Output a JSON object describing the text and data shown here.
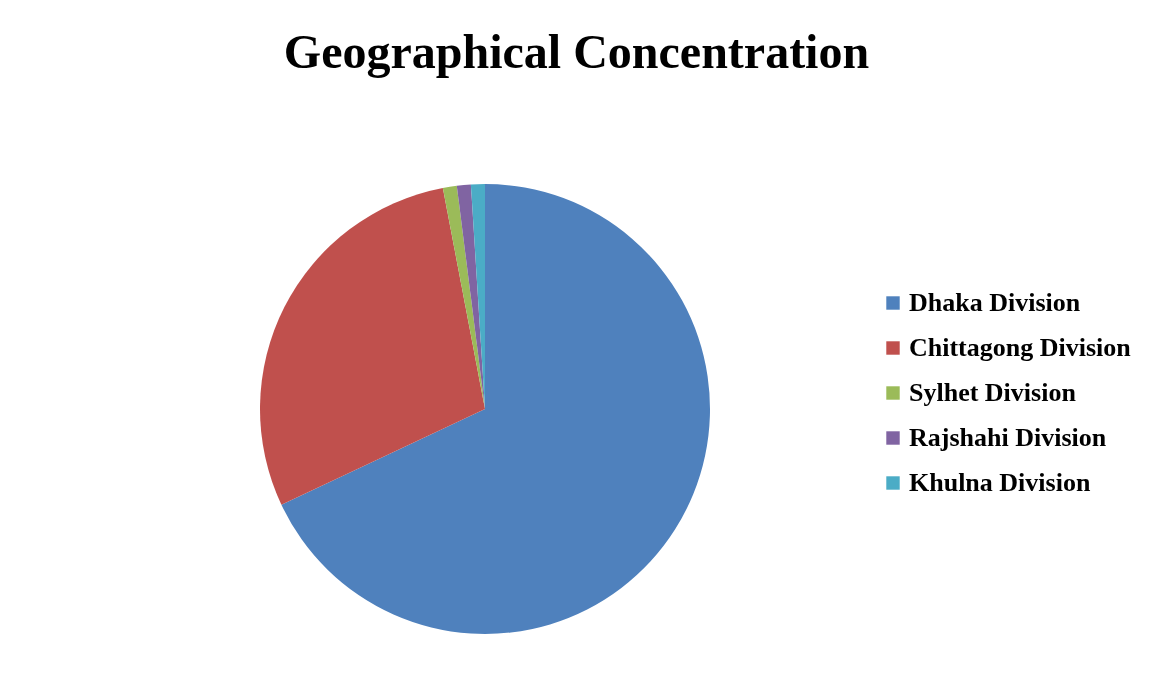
{
  "chart_data": {
    "type": "pie",
    "title": "Geographical Concentration",
    "categories": [
      "Dhaka Division",
      "Chittagong Division",
      "Sylhet Division",
      "Rajshahi Division",
      "Khulna Division"
    ],
    "values": [
      68,
      29,
      1,
      1,
      1
    ],
    "colors": [
      "#4f81bd",
      "#c0504d",
      "#9bbb59",
      "#8064a2",
      "#4bacc6"
    ],
    "legend": "right"
  }
}
